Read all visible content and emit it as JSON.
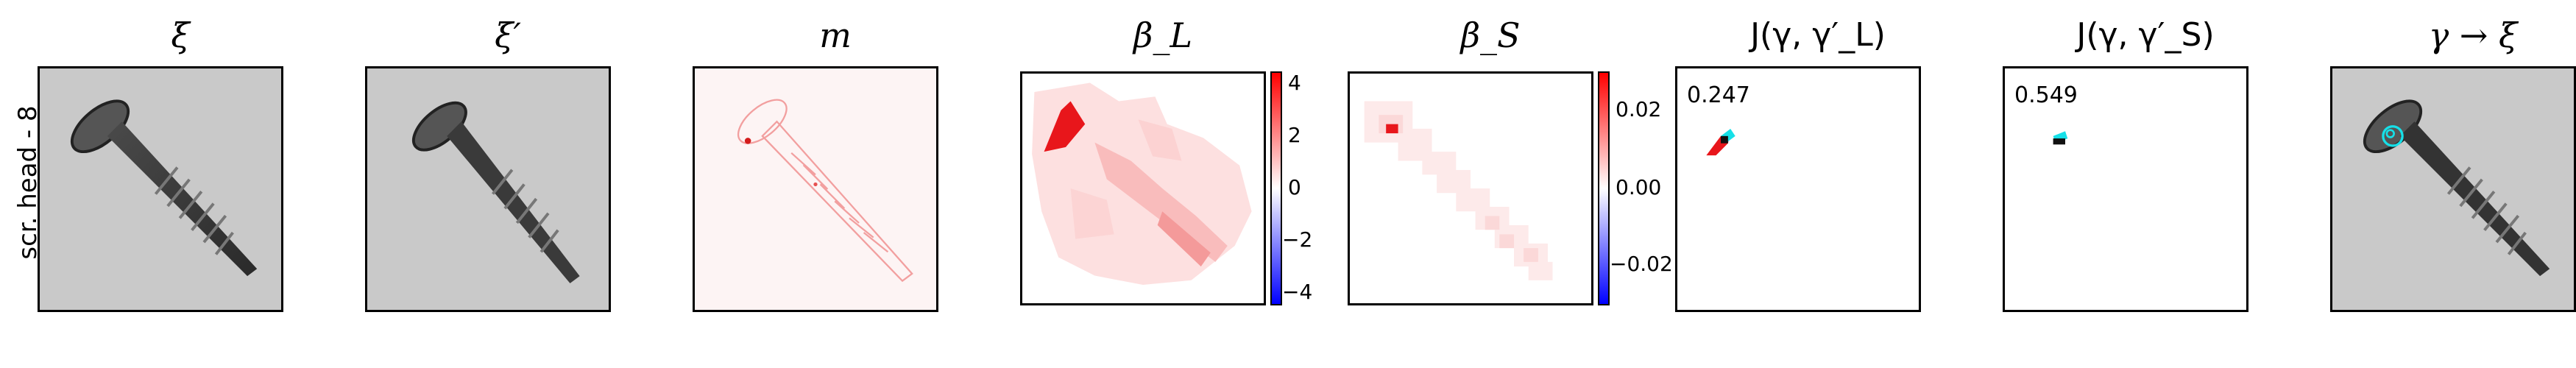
{
  "row_label": "scr. head - 8",
  "panels": [
    {
      "title": "ξ"
    },
    {
      "title": "ξ′"
    },
    {
      "title": "m"
    },
    {
      "title": "β_L"
    },
    {
      "title": "β_S"
    },
    {
      "title": "J(γ, γ′_L)"
    },
    {
      "title": "J(γ, γ′_S)"
    },
    {
      "title": "γ → ξ"
    }
  ],
  "beta_L_colorbar": {
    "ticks": [
      "4",
      "2",
      "0",
      "−2",
      "−4"
    ],
    "colors": [
      "#ff0000",
      "#ffffff",
      "#0000ff"
    ]
  },
  "beta_S_colorbar": {
    "ticks": [
      "0.02",
      "0.00",
      "−0.02"
    ],
    "colors": [
      "#ff0000",
      "#ffffff",
      "#0000ff"
    ]
  },
  "jaccard_L": {
    "score": "0.247"
  },
  "jaccard_S": {
    "score": "0.549"
  },
  "colors": {
    "positive": "#e8161b",
    "negative": "#2a2aff",
    "highlight": "#16e0e8",
    "frame": "#000000"
  }
}
